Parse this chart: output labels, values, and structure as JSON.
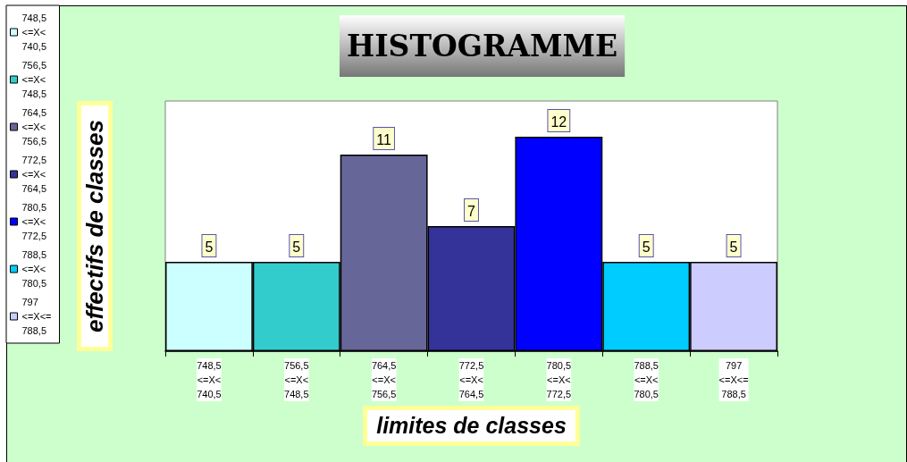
{
  "chart_data": {
    "type": "bar",
    "title": "HISTOGRAMME",
    "xlabel": "limites de classes",
    "ylabel": "effectifs de classes",
    "categories": [
      "748,5 <=X< 740,5",
      "756,5 <=X< 748,5",
      "764,5 <=X< 756,5",
      "772,5 <=X< 764,5",
      "780,5 <=X< 772,5",
      "788,5 <=X< 780,5",
      "797 <=X<= 788,5"
    ],
    "series": [
      {
        "name": "748,5 <=X< 740,5",
        "color": "#ccffff",
        "values": [
          5,
          null,
          null,
          null,
          null,
          null,
          null
        ]
      },
      {
        "name": "756,5 <=X< 748,5",
        "color": "#33cccc",
        "values": [
          null,
          5,
          null,
          null,
          null,
          null,
          null
        ]
      },
      {
        "name": "764,5 <=X< 756,5",
        "color": "#666699",
        "values": [
          null,
          null,
          11,
          null,
          null,
          null,
          null
        ]
      },
      {
        "name": "772,5 <=X< 764,5",
        "color": "#333399",
        "values": [
          null,
          null,
          null,
          7,
          null,
          null,
          null
        ]
      },
      {
        "name": "780,5 <=X< 772,5",
        "color": "#0000ff",
        "values": [
          null,
          null,
          null,
          null,
          12,
          null,
          null
        ]
      },
      {
        "name": "788,5 <=X< 780,5",
        "color": "#00ccff",
        "values": [
          null,
          null,
          null,
          null,
          null,
          5,
          null
        ]
      },
      {
        "name": "797 <=X<= 788,5",
        "color": "#ccccff",
        "values": [
          null,
          null,
          null,
          null,
          null,
          null,
          5
        ]
      }
    ],
    "ylim": [
      0,
      14
    ],
    "data_labels": true,
    "legend": "left",
    "grid": false,
    "tick_labels": "x"
  }
}
